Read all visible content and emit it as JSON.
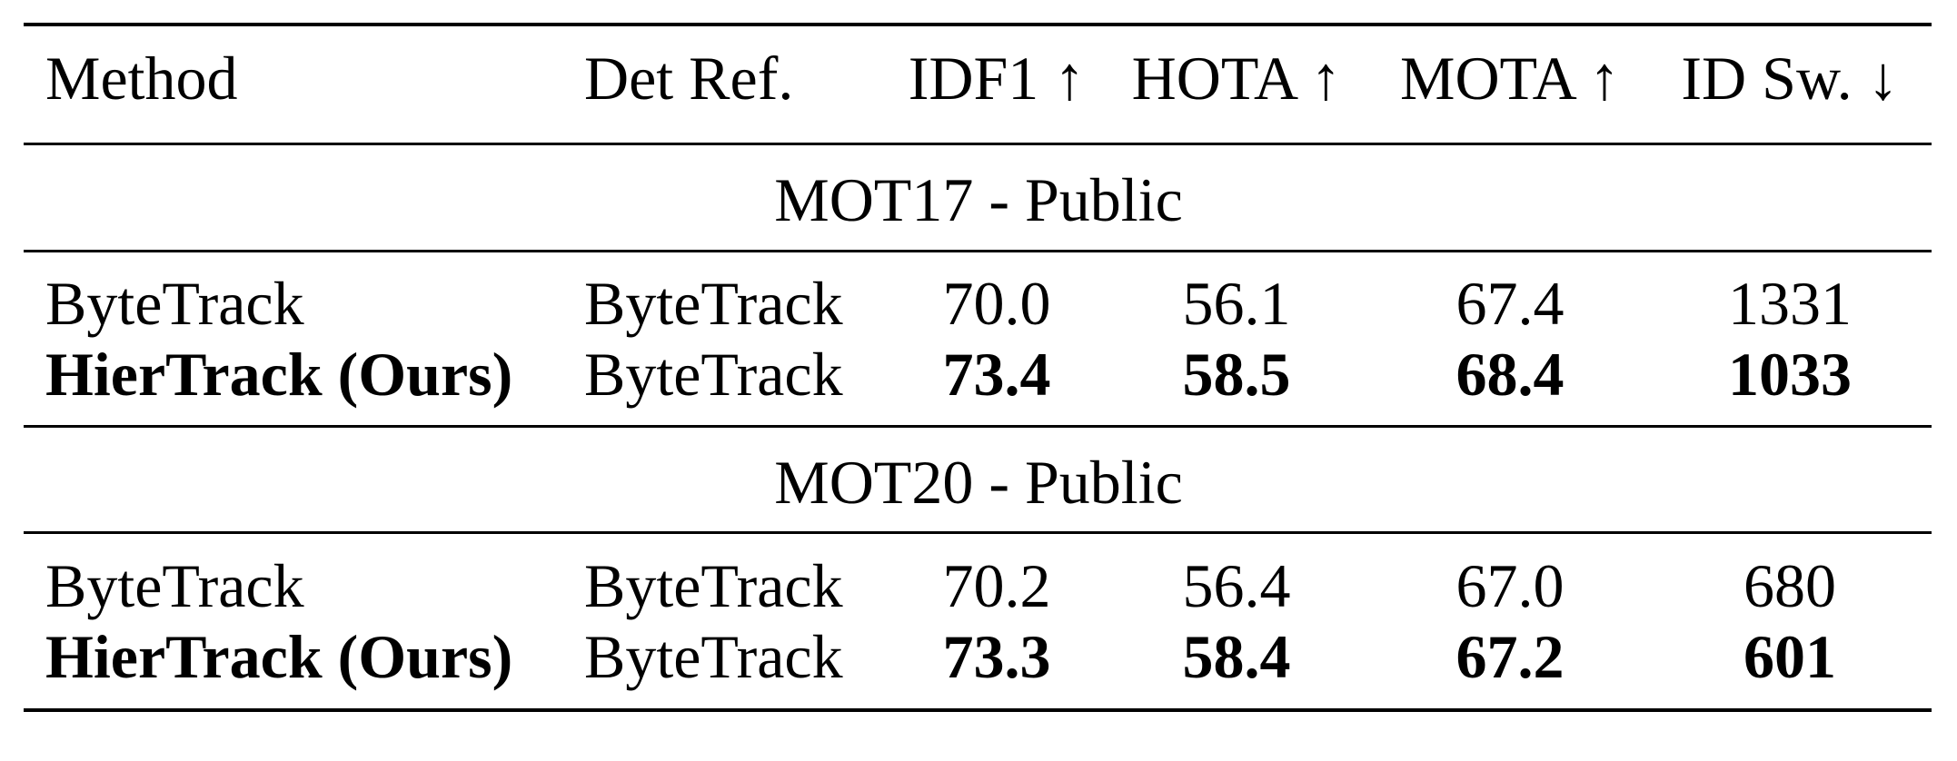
{
  "table": {
    "headers": [
      "Method",
      "Det Ref.",
      "IDF1 ↑",
      "HOTA ↑",
      "MOTA ↑",
      "ID Sw. ↓"
    ],
    "sections": [
      {
        "title": "MOT17 - Public",
        "rows": [
          {
            "method": "ByteTrack",
            "det_ref": "ByteTrack",
            "idf1": "70.0",
            "hota": "56.1",
            "mota": "67.4",
            "idsw": "1331",
            "bold": false
          },
          {
            "method": "HierTrack (Ours)",
            "det_ref": "ByteTrack",
            "idf1": "73.4",
            "hota": "58.5",
            "mota": "68.4",
            "idsw": "1033",
            "bold": true
          }
        ]
      },
      {
        "title": "MOT20 - Public",
        "rows": [
          {
            "method": "ByteTrack",
            "det_ref": "ByteTrack",
            "idf1": "70.2",
            "hota": "56.4",
            "mota": "67.0",
            "idsw": "680",
            "bold": false
          },
          {
            "method": "HierTrack (Ours)",
            "det_ref": "ByteTrack",
            "idf1": "73.3",
            "hota": "58.4",
            "mota": "67.2",
            "idsw": "601",
            "bold": true
          }
        ]
      }
    ]
  }
}
